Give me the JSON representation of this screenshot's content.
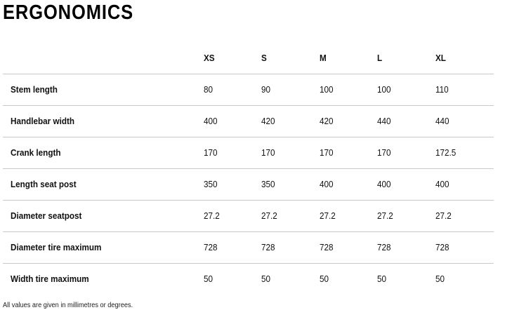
{
  "title": "ERGONOMICS",
  "columns": [
    "XS",
    "S",
    "M",
    "L",
    "XL"
  ],
  "rows": [
    {
      "label": "Stem length",
      "values": [
        "80",
        "90",
        "100",
        "100",
        "110"
      ]
    },
    {
      "label": "Handlebar width",
      "values": [
        "400",
        "420",
        "420",
        "440",
        "440"
      ]
    },
    {
      "label": "Crank length",
      "values": [
        "170",
        "170",
        "170",
        "170",
        "172.5"
      ]
    },
    {
      "label": "Length seat post",
      "values": [
        "350",
        "350",
        "400",
        "400",
        "400"
      ]
    },
    {
      "label": "Diameter seatpost",
      "values": [
        "27.2",
        "27.2",
        "27.2",
        "27.2",
        "27.2"
      ]
    },
    {
      "label": "Diameter tire maximum",
      "values": [
        "728",
        "728",
        "728",
        "728",
        "728"
      ]
    },
    {
      "label": "Width tire maximum",
      "values": [
        "50",
        "50",
        "50",
        "50",
        "50"
      ]
    }
  ],
  "footnote": "All values are given in millimetres or degrees."
}
